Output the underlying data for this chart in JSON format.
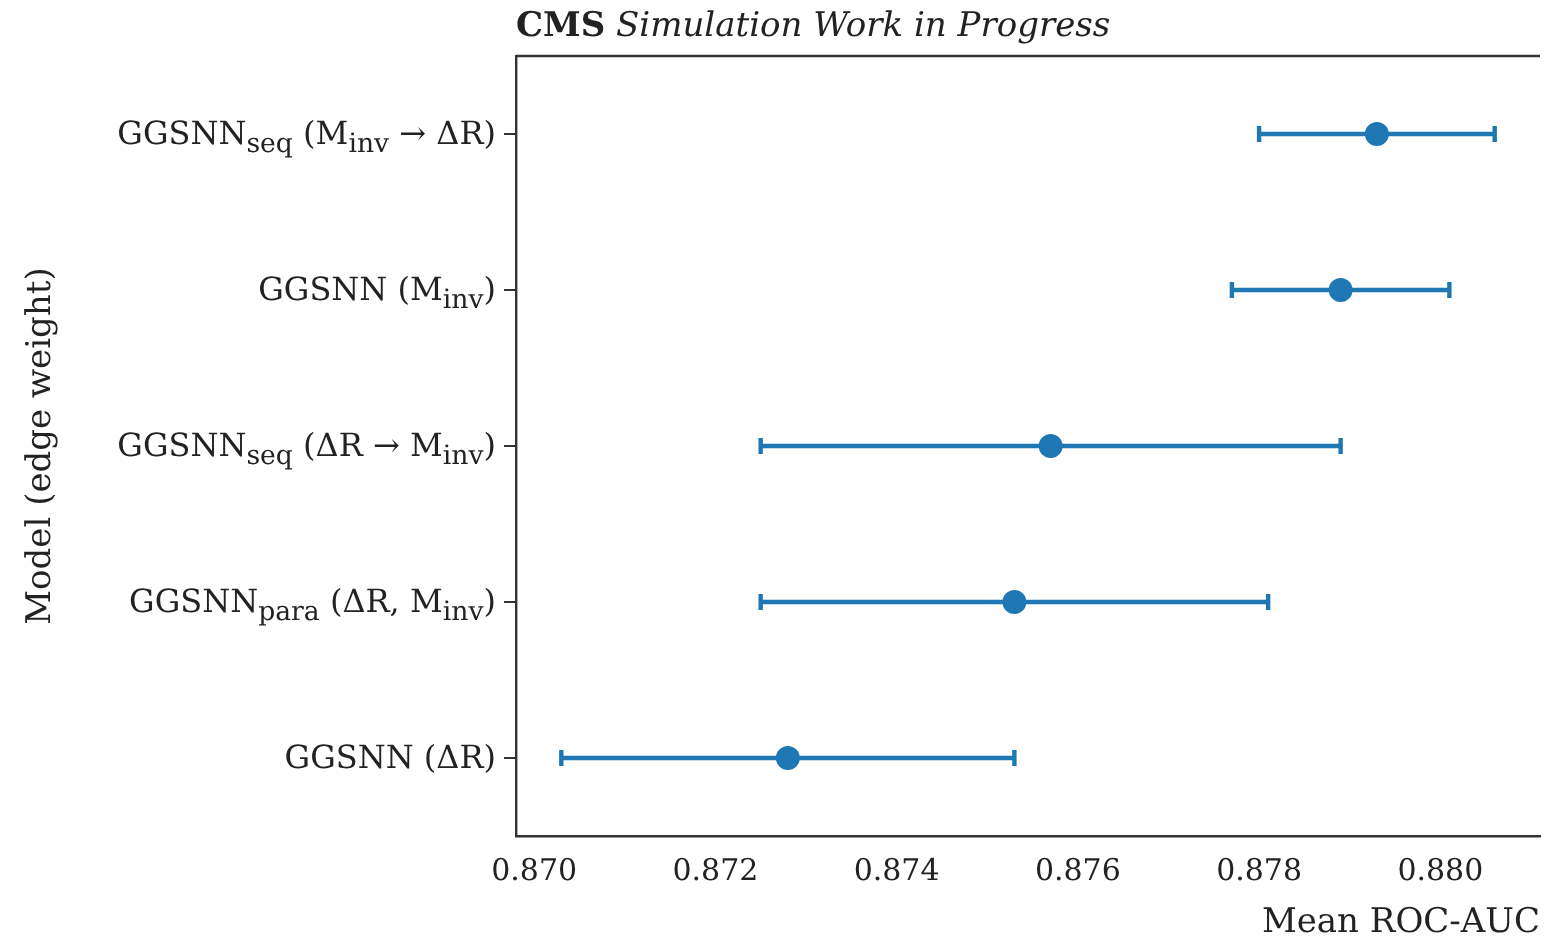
{
  "chart_data": {
    "type": "scatter",
    "orientation": "horizontal",
    "title": "CMS Simulation Work in Progress",
    "xlabel": "Mean ROC-AUC",
    "ylabel": "Model (edge weight)",
    "categories": [
      "GGSNN$_{seq}$ (M$_{inv}$ → ΔR)",
      "GGSNN (M$_{inv}$)",
      "GGSNN$_{seq}$ (ΔR → M$_{inv}$)",
      "GGSNN$_{para}$ (ΔR, M$_{inv}$)",
      "GGSNN (ΔR)"
    ],
    "values": [
      0.8793,
      0.8789,
      0.8757,
      0.8753,
      0.8728
    ],
    "errors": [
      [
        0.878,
        0.8806
      ],
      [
        0.8777,
        0.8801
      ],
      [
        0.8725,
        0.8789
      ],
      [
        0.8725,
        0.8781
      ],
      [
        0.8703,
        0.8753
      ]
    ],
    "color": "#1f77b4",
    "marker": "circle",
    "grid": false,
    "legend": false,
    "xlim": [
      0.8698,
      0.8811
    ],
    "xticks": [
      {
        "value": 0.87,
        "label": "0.870"
      },
      {
        "value": 0.872,
        "label": "0.872"
      },
      {
        "value": 0.874,
        "label": "0.874"
      },
      {
        "value": 0.876,
        "label": "0.876"
      },
      {
        "value": 0.878,
        "label": "0.878"
      },
      {
        "value": 0.88,
        "label": "0.880"
      }
    ]
  }
}
